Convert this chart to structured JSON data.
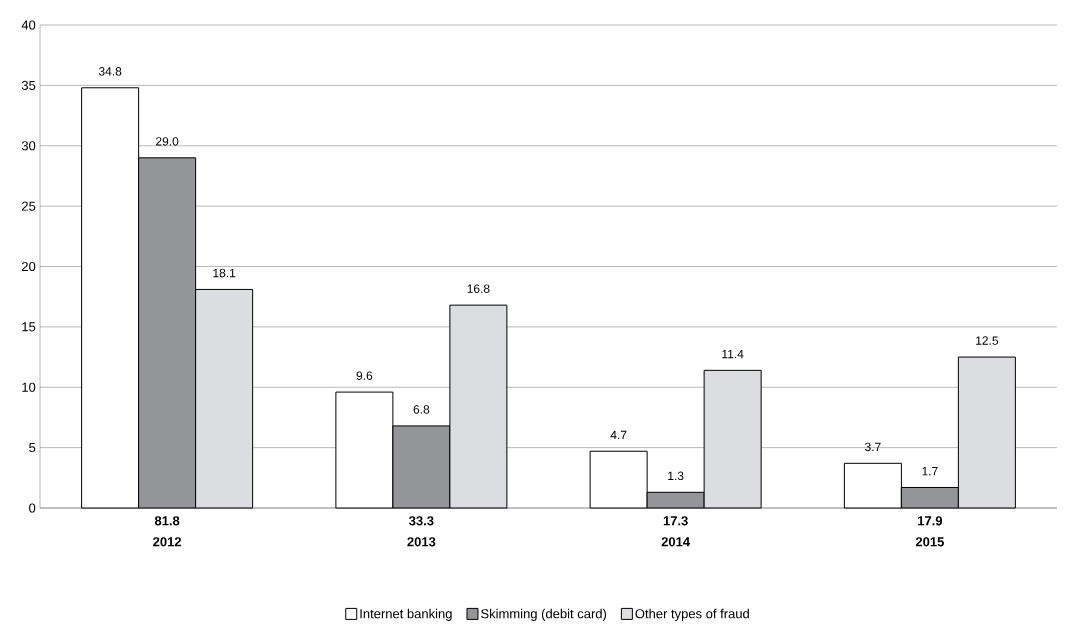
{
  "chart_data": {
    "type": "bar",
    "categories": [
      "2012",
      "2013",
      "2014",
      "2015"
    ],
    "totals": [
      "81.8",
      "33.3",
      "17.3",
      "17.9"
    ],
    "series": [
      {
        "name": "Internet banking",
        "color": "#ffffff",
        "values": [
          34.8,
          9.6,
          4.7,
          3.7
        ],
        "value_labels": [
          "34.8",
          "9.6",
          "4.7",
          "3.7"
        ]
      },
      {
        "name": "Skimming (debit card)",
        "color": "#939598",
        "values": [
          29.0,
          6.8,
          1.3,
          1.7
        ],
        "value_labels": [
          "29.0",
          "6.8",
          "1.3",
          "1.7"
        ]
      },
      {
        "name": "Other types of fraud",
        "color": "#dcdde0",
        "values": [
          18.1,
          16.8,
          11.4,
          12.5
        ],
        "value_labels": [
          "18.1",
          "16.8",
          "11.4",
          "12.5"
        ]
      }
    ],
    "ylim": [
      0,
      40
    ],
    "yticks": [
      0,
      5,
      10,
      15,
      20,
      25,
      30,
      35,
      40
    ],
    "grid": "y",
    "legend": "bottom"
  }
}
